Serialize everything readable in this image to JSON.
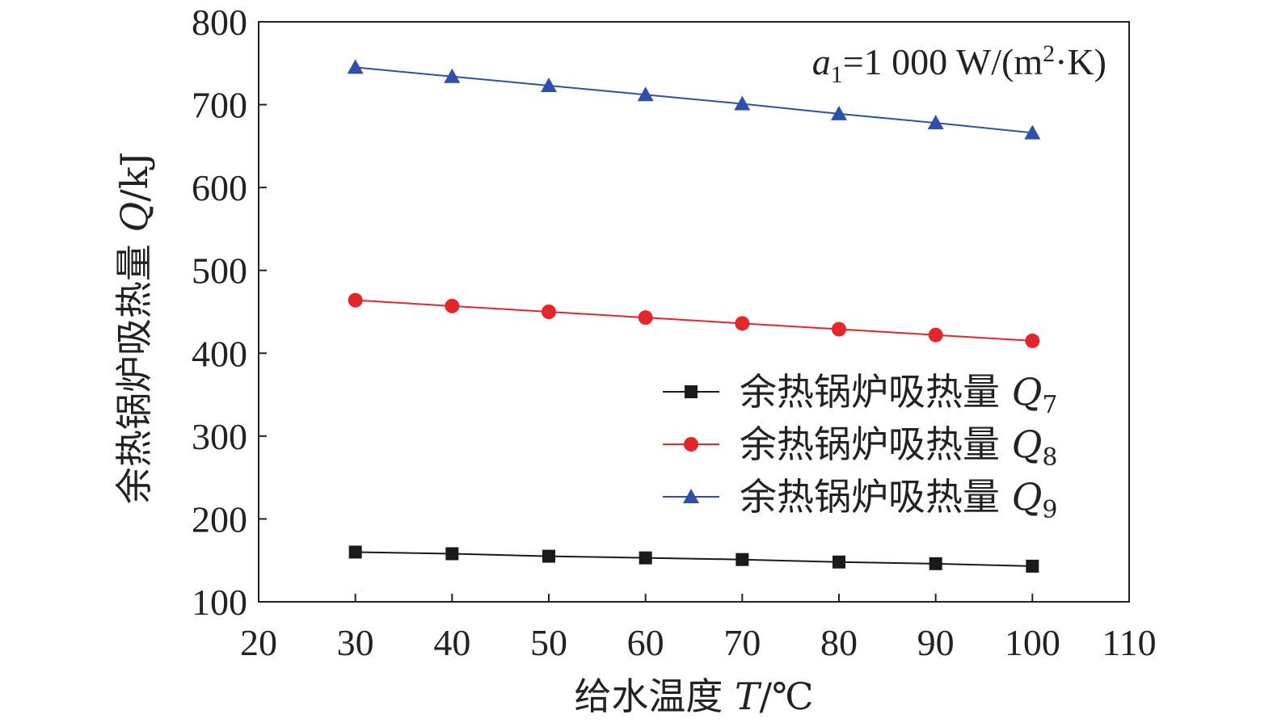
{
  "chart_data": {
    "type": "line",
    "x": [
      30,
      40,
      50,
      60,
      70,
      80,
      90,
      100
    ],
    "xlim": [
      20,
      110
    ],
    "ylim": [
      100,
      800
    ],
    "xticks": [
      20,
      30,
      40,
      50,
      60,
      70,
      80,
      90,
      100,
      110
    ],
    "yticks": [
      100,
      200,
      300,
      400,
      500,
      600,
      700,
      800
    ],
    "xlabel": {
      "main": "给水温度 ",
      "var": "T",
      "unit": "/℃"
    },
    "ylabel": {
      "main": "余热锅炉吸热量 ",
      "var": "Q",
      "unit": "/kJ"
    },
    "annotation": {
      "var": "a",
      "sub": "1",
      "eq": "=1 000 W/(m",
      "sup": "2",
      "tail": "·K)"
    },
    "legend_position": "center-right",
    "grid": false,
    "series": [
      {
        "name": "余热锅炉吸热量 ",
        "var": "Q",
        "sub": "7",
        "color": "#1a1a1a",
        "marker": "square",
        "values": [
          160,
          158,
          155,
          153,
          151,
          148,
          146,
          143
        ]
      },
      {
        "name": "余热锅炉吸热量 ",
        "var": "Q",
        "sub": "8",
        "color": "#e3262c",
        "marker": "circle",
        "values": [
          464,
          457,
          450,
          443,
          436,
          429,
          422,
          415
        ]
      },
      {
        "name": "余热锅炉吸热量 ",
        "var": "Q",
        "sub": "9",
        "color": "#2f4fa8",
        "marker": "triangle",
        "values": [
          745,
          734,
          723,
          712,
          701,
          689,
          678,
          666
        ]
      }
    ]
  }
}
